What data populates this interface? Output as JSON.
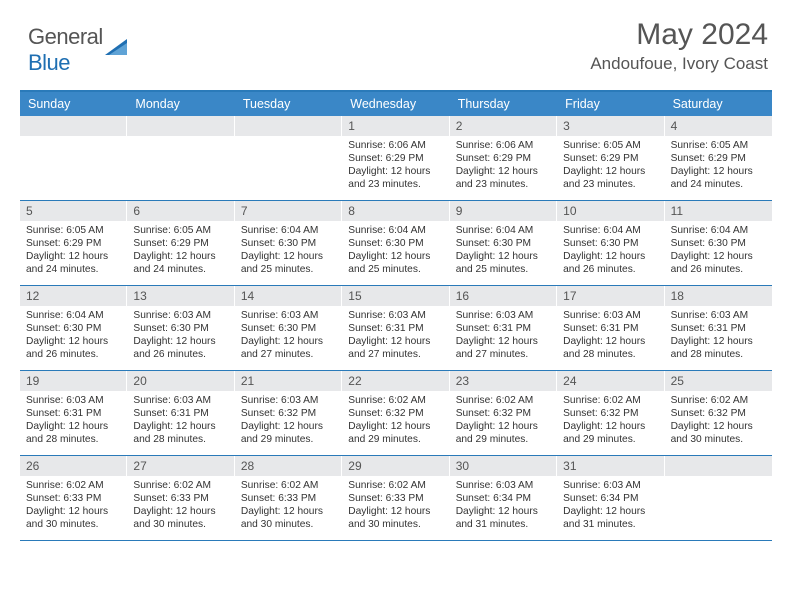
{
  "logo": {
    "part1": "General",
    "part2": "Blue"
  },
  "title": "May 2024",
  "location": "Andoufoue, Ivory Coast",
  "day_names": [
    "Sunday",
    "Monday",
    "Tuesday",
    "Wednesday",
    "Thursday",
    "Friday",
    "Saturday"
  ],
  "header_bg": "#3a87c7",
  "border_color": "#2a7ab9",
  "daynum_bg": "#e7e8ea",
  "weeks": [
    [
      {
        "n": "",
        "lines": []
      },
      {
        "n": "",
        "lines": []
      },
      {
        "n": "",
        "lines": []
      },
      {
        "n": "1",
        "lines": [
          "Sunrise: 6:06 AM",
          "Sunset: 6:29 PM",
          "Daylight: 12 hours and 23 minutes."
        ]
      },
      {
        "n": "2",
        "lines": [
          "Sunrise: 6:06 AM",
          "Sunset: 6:29 PM",
          "Daylight: 12 hours and 23 minutes."
        ]
      },
      {
        "n": "3",
        "lines": [
          "Sunrise: 6:05 AM",
          "Sunset: 6:29 PM",
          "Daylight: 12 hours and 23 minutes."
        ]
      },
      {
        "n": "4",
        "lines": [
          "Sunrise: 6:05 AM",
          "Sunset: 6:29 PM",
          "Daylight: 12 hours and 24 minutes."
        ]
      }
    ],
    [
      {
        "n": "5",
        "lines": [
          "Sunrise: 6:05 AM",
          "Sunset: 6:29 PM",
          "Daylight: 12 hours and 24 minutes."
        ]
      },
      {
        "n": "6",
        "lines": [
          "Sunrise: 6:05 AM",
          "Sunset: 6:29 PM",
          "Daylight: 12 hours and 24 minutes."
        ]
      },
      {
        "n": "7",
        "lines": [
          "Sunrise: 6:04 AM",
          "Sunset: 6:30 PM",
          "Daylight: 12 hours and 25 minutes."
        ]
      },
      {
        "n": "8",
        "lines": [
          "Sunrise: 6:04 AM",
          "Sunset: 6:30 PM",
          "Daylight: 12 hours and 25 minutes."
        ]
      },
      {
        "n": "9",
        "lines": [
          "Sunrise: 6:04 AM",
          "Sunset: 6:30 PM",
          "Daylight: 12 hours and 25 minutes."
        ]
      },
      {
        "n": "10",
        "lines": [
          "Sunrise: 6:04 AM",
          "Sunset: 6:30 PM",
          "Daylight: 12 hours and 26 minutes."
        ]
      },
      {
        "n": "11",
        "lines": [
          "Sunrise: 6:04 AM",
          "Sunset: 6:30 PM",
          "Daylight: 12 hours and 26 minutes."
        ]
      }
    ],
    [
      {
        "n": "12",
        "lines": [
          "Sunrise: 6:04 AM",
          "Sunset: 6:30 PM",
          "Daylight: 12 hours and 26 minutes."
        ]
      },
      {
        "n": "13",
        "lines": [
          "Sunrise: 6:03 AM",
          "Sunset: 6:30 PM",
          "Daylight: 12 hours and 26 minutes."
        ]
      },
      {
        "n": "14",
        "lines": [
          "Sunrise: 6:03 AM",
          "Sunset: 6:30 PM",
          "Daylight: 12 hours and 27 minutes."
        ]
      },
      {
        "n": "15",
        "lines": [
          "Sunrise: 6:03 AM",
          "Sunset: 6:31 PM",
          "Daylight: 12 hours and 27 minutes."
        ]
      },
      {
        "n": "16",
        "lines": [
          "Sunrise: 6:03 AM",
          "Sunset: 6:31 PM",
          "Daylight: 12 hours and 27 minutes."
        ]
      },
      {
        "n": "17",
        "lines": [
          "Sunrise: 6:03 AM",
          "Sunset: 6:31 PM",
          "Daylight: 12 hours and 28 minutes."
        ]
      },
      {
        "n": "18",
        "lines": [
          "Sunrise: 6:03 AM",
          "Sunset: 6:31 PM",
          "Daylight: 12 hours and 28 minutes."
        ]
      }
    ],
    [
      {
        "n": "19",
        "lines": [
          "Sunrise: 6:03 AM",
          "Sunset: 6:31 PM",
          "Daylight: 12 hours and 28 minutes."
        ]
      },
      {
        "n": "20",
        "lines": [
          "Sunrise: 6:03 AM",
          "Sunset: 6:31 PM",
          "Daylight: 12 hours and 28 minutes."
        ]
      },
      {
        "n": "21",
        "lines": [
          "Sunrise: 6:03 AM",
          "Sunset: 6:32 PM",
          "Daylight: 12 hours and 29 minutes."
        ]
      },
      {
        "n": "22",
        "lines": [
          "Sunrise: 6:02 AM",
          "Sunset: 6:32 PM",
          "Daylight: 12 hours and 29 minutes."
        ]
      },
      {
        "n": "23",
        "lines": [
          "Sunrise: 6:02 AM",
          "Sunset: 6:32 PM",
          "Daylight: 12 hours and 29 minutes."
        ]
      },
      {
        "n": "24",
        "lines": [
          "Sunrise: 6:02 AM",
          "Sunset: 6:32 PM",
          "Daylight: 12 hours and 29 minutes."
        ]
      },
      {
        "n": "25",
        "lines": [
          "Sunrise: 6:02 AM",
          "Sunset: 6:32 PM",
          "Daylight: 12 hours and 30 minutes."
        ]
      }
    ],
    [
      {
        "n": "26",
        "lines": [
          "Sunrise: 6:02 AM",
          "Sunset: 6:33 PM",
          "Daylight: 12 hours and 30 minutes."
        ]
      },
      {
        "n": "27",
        "lines": [
          "Sunrise: 6:02 AM",
          "Sunset: 6:33 PM",
          "Daylight: 12 hours and 30 minutes."
        ]
      },
      {
        "n": "28",
        "lines": [
          "Sunrise: 6:02 AM",
          "Sunset: 6:33 PM",
          "Daylight: 12 hours and 30 minutes."
        ]
      },
      {
        "n": "29",
        "lines": [
          "Sunrise: 6:02 AM",
          "Sunset: 6:33 PM",
          "Daylight: 12 hours and 30 minutes."
        ]
      },
      {
        "n": "30",
        "lines": [
          "Sunrise: 6:03 AM",
          "Sunset: 6:34 PM",
          "Daylight: 12 hours and 31 minutes."
        ]
      },
      {
        "n": "31",
        "lines": [
          "Sunrise: 6:03 AM",
          "Sunset: 6:34 PM",
          "Daylight: 12 hours and 31 minutes."
        ]
      },
      {
        "n": "",
        "lines": []
      }
    ]
  ]
}
